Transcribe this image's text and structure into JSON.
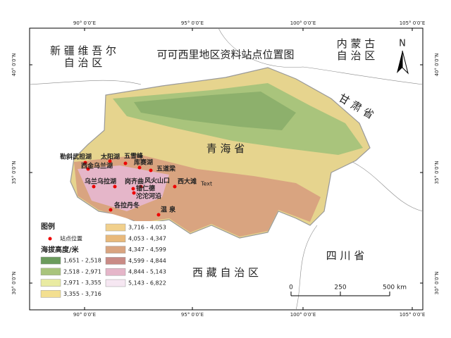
{
  "title": "可可西里地区资料站点位置图",
  "regions": {
    "xinjiang_1": "新 疆 维 吾 尔",
    "xinjiang_2": "自 治 区",
    "neimenggu_1": "内 蒙 古",
    "neimenggu_2": "自 治 区",
    "gansu": "甘 肃 省",
    "qinghai": "青 海 省",
    "xizang": "西 藏 自 治 区",
    "sichuan": "四 川 省"
  },
  "lon_labels": [
    "90° 0′0″E",
    "95° 0′0″E",
    "100° 0′0″E",
    "105° 0′0″E"
  ],
  "lat_labels": [
    "40° 0′0″N",
    "35° 0′0″N",
    "30° 0′0″N"
  ],
  "stations": [
    "勒斜武担湖",
    "太阳湖",
    "五雪峰",
    "西金乌兰湖",
    "库赛湖",
    "五道梁",
    "乌兰乌拉湖",
    "岗齐曲",
    "风火山口",
    "西大滩",
    "错仁德",
    "沱沱河沿",
    "各拉丹冬",
    "温 泉"
  ],
  "stray_label": "Text",
  "north": "N",
  "legend": {
    "title": "图例",
    "station": "站点位置",
    "elev_title": "海拔高度/米",
    "classes": [
      {
        "label": "1,651 - 2,518",
        "color": "#6b9b5c"
      },
      {
        "label": "2,518 - 2,971",
        "color": "#a9c47c"
      },
      {
        "label": "2,971 - 3,355",
        "color": "#e9eba2"
      },
      {
        "label": "3,355 - 3,716",
        "color": "#f3df90"
      },
      {
        "label": "3,716 - 4,053",
        "color": "#f1d08c"
      },
      {
        "label": "4,053 - 4,347",
        "color": "#e8b97b"
      },
      {
        "label": "4,347 - 4,599",
        "color": "#d9a480"
      },
      {
        "label": "4,599 - 4,844",
        "color": "#c98b86"
      },
      {
        "label": "4,844 - 5,143",
        "color": "#e5b6c9"
      },
      {
        "label": "5,143 - 6,822",
        "color": "#f6e7f2"
      }
    ]
  },
  "scale": [
    "0",
    "250",
    "500 km"
  ]
}
